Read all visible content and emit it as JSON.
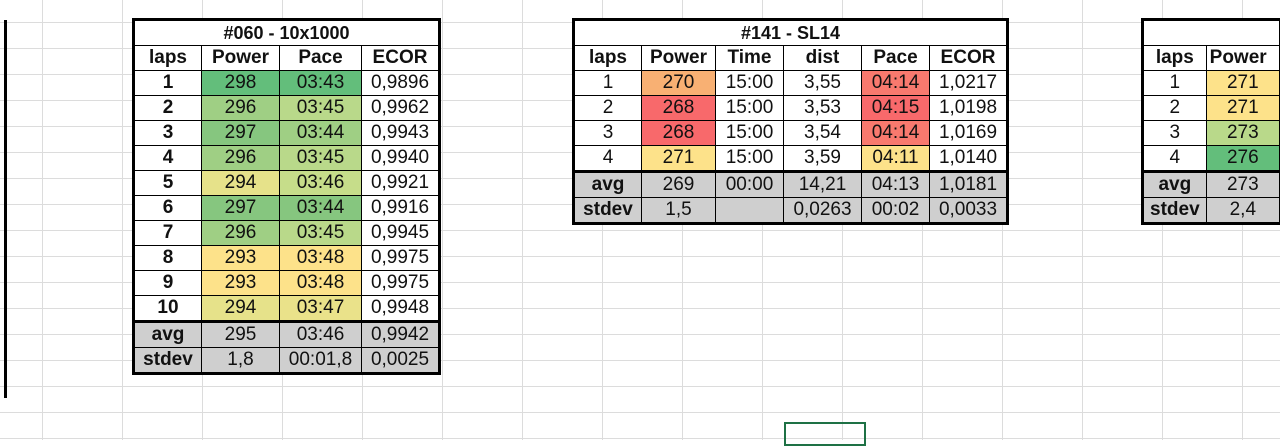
{
  "colors": {
    "green_dark": "#63be7b",
    "green_light": "#b9d98a",
    "yellow": "#fde28a",
    "orange": "#f8b073",
    "red": "#f8696b",
    "stat_gray": "#cfcfcf"
  },
  "table1": {
    "title": "#060 - 10x1000",
    "headers": [
      "laps",
      "Power",
      "Pace",
      "ECOR"
    ],
    "rows": [
      {
        "lap": "1",
        "power": "298",
        "pace": "03:43",
        "ecor": "0,9896"
      },
      {
        "lap": "2",
        "power": "296",
        "pace": "03:45",
        "ecor": "0,9962"
      },
      {
        "lap": "3",
        "power": "297",
        "pace": "03:44",
        "ecor": "0,9943"
      },
      {
        "lap": "4",
        "power": "296",
        "pace": "03:45",
        "ecor": "0,9940"
      },
      {
        "lap": "5",
        "power": "294",
        "pace": "03:46",
        "ecor": "0,9921"
      },
      {
        "lap": "6",
        "power": "297",
        "pace": "03:44",
        "ecor": "0,9916"
      },
      {
        "lap": "7",
        "power": "296",
        "pace": "03:45",
        "ecor": "0,9945"
      },
      {
        "lap": "8",
        "power": "293",
        "pace": "03:48",
        "ecor": "0,9975"
      },
      {
        "lap": "9",
        "power": "293",
        "pace": "03:48",
        "ecor": "0,9975"
      },
      {
        "lap": "10",
        "power": "294",
        "pace": "03:47",
        "ecor": "0,9948"
      }
    ],
    "avg": {
      "label": "avg",
      "power": "295",
      "pace": "03:46",
      "ecor": "0,9942"
    },
    "stdev": {
      "label": "stdev",
      "power": "1,8",
      "pace": "00:01,8",
      "ecor": "0,0025"
    }
  },
  "table2": {
    "title": "#141 - SL14",
    "headers": [
      "laps",
      "Power",
      "Time",
      "dist",
      "Pace",
      "ECOR"
    ],
    "rows": [
      {
        "lap": "1",
        "power": "270",
        "time": "15:00",
        "dist": "3,55",
        "pace": "04:14",
        "ecor": "1,0217"
      },
      {
        "lap": "2",
        "power": "268",
        "time": "15:00",
        "dist": "3,53",
        "pace": "04:15",
        "ecor": "1,0198"
      },
      {
        "lap": "3",
        "power": "268",
        "time": "15:00",
        "dist": "3,54",
        "pace": "04:14",
        "ecor": "1,0169"
      },
      {
        "lap": "4",
        "power": "271",
        "time": "15:00",
        "dist": "3,59",
        "pace": "04:11",
        "ecor": "1,0140"
      }
    ],
    "avg": {
      "label": "avg",
      "power": "269",
      "time": "00:00",
      "dist": "14,21",
      "pace": "04:13",
      "ecor": "1,0181"
    },
    "stdev": {
      "label": "stdev",
      "power": "1,5",
      "time": "",
      "dist": "0,0263",
      "pace": "00:02",
      "ecor": "0,0033"
    }
  },
  "table3": {
    "headers": [
      "laps",
      "Power"
    ],
    "rows": [
      {
        "lap": "1",
        "power": "271"
      },
      {
        "lap": "2",
        "power": "271"
      },
      {
        "lap": "3",
        "power": "273"
      },
      {
        "lap": "4",
        "power": "276"
      }
    ],
    "avg": {
      "label": "avg",
      "power": "273"
    },
    "stdev": {
      "label": "stdev",
      "power": "2,4"
    }
  }
}
